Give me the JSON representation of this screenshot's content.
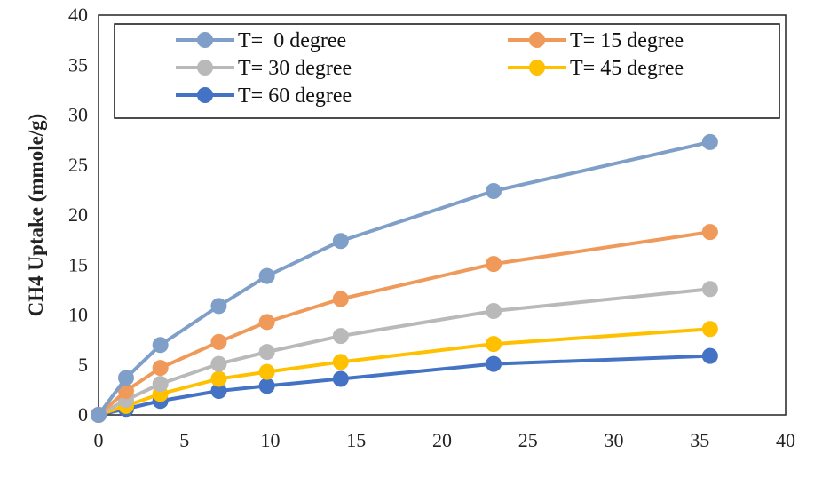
{
  "chart_data": {
    "type": "line",
    "title": "",
    "xlabel": "",
    "ylabel": "CH4 Uptake (mmole/g)",
    "xlim": [
      0,
      40
    ],
    "ylim": [
      0,
      40
    ],
    "xticks": [
      0,
      5,
      10,
      15,
      20,
      25,
      30,
      35,
      40
    ],
    "yticks": [
      0,
      5,
      10,
      15,
      20,
      25,
      30,
      35,
      40
    ],
    "grid": false,
    "legend_position": "top",
    "x": [
      0,
      1.6,
      3.6,
      7,
      9.8,
      14.1,
      23,
      35.6
    ],
    "series": [
      {
        "name": "T=  0 degree",
        "color": "#7f9fc9",
        "values": [
          0,
          3.7,
          7.0,
          10.9,
          13.9,
          17.4,
          22.4,
          27.3
        ]
      },
      {
        "name": "T= 15 degree",
        "color": "#ef9a5a",
        "values": [
          0,
          2.4,
          4.7,
          7.3,
          9.3,
          11.6,
          15.1,
          18.3
        ]
      },
      {
        "name": "T= 30 degree",
        "color": "#b9b9b9",
        "values": [
          0,
          1.5,
          3.1,
          5.1,
          6.3,
          7.9,
          10.4,
          12.6
        ]
      },
      {
        "name": "T= 45 degree",
        "color": "#ffc000",
        "values": [
          0,
          0.9,
          2.1,
          3.6,
          4.3,
          5.3,
          7.1,
          8.6
        ]
      },
      {
        "name": "T= 60 degree",
        "color": "#4472c4",
        "values": [
          0,
          0.6,
          1.4,
          2.4,
          2.9,
          3.6,
          5.1,
          5.9
        ]
      }
    ]
  }
}
